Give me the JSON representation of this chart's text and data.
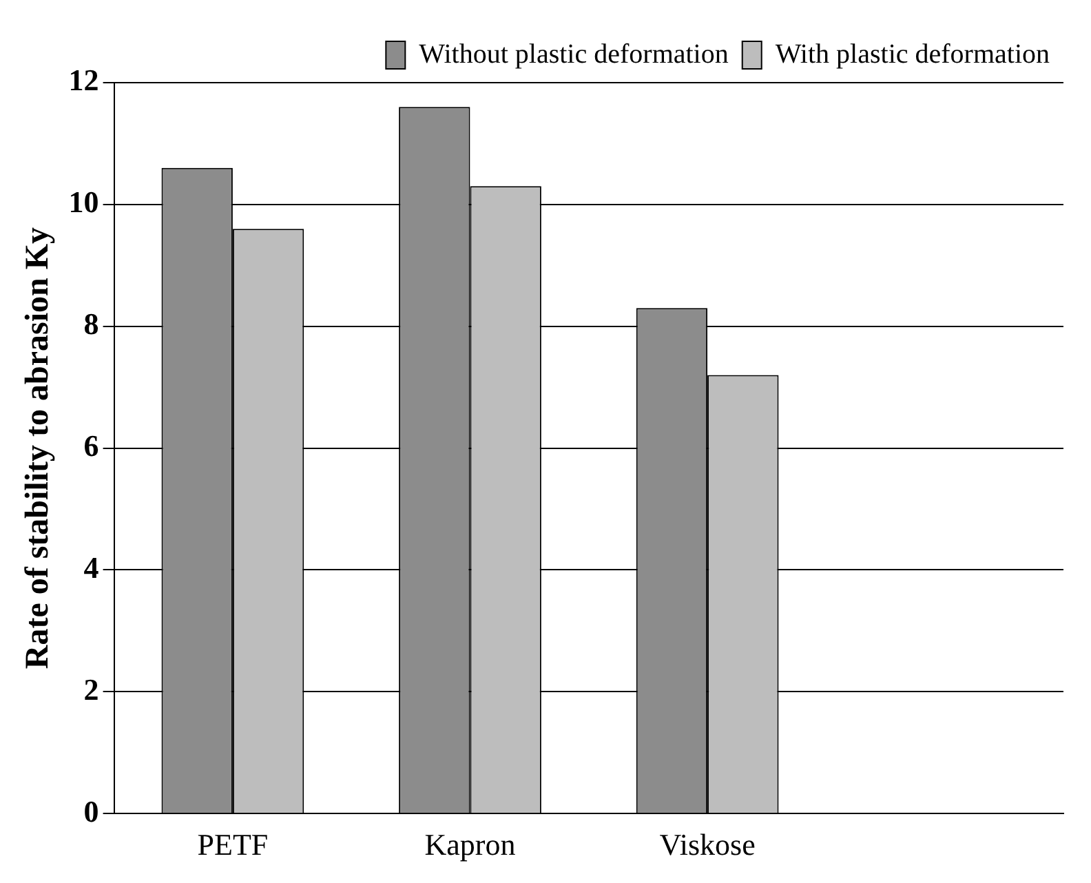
{
  "chart_data": {
    "type": "bar",
    "ylabel": "Rate of stability to abrasion Ky",
    "categories": [
      "PETF",
      "Kapron",
      "Viskose",
      null
    ],
    "series": [
      {
        "name": "Without plastic deformation",
        "color": "#8c8c8c",
        "values": [
          10.6,
          11.6,
          8.3,
          null
        ]
      },
      {
        "name": "With plastic deformation",
        "color": "#bdbdbd",
        "values": [
          9.6,
          10.3,
          7.2,
          null
        ]
      }
    ],
    "ylim": [
      0,
      12
    ],
    "yticks": [
      0,
      2,
      4,
      6,
      8,
      10,
      12
    ],
    "grid": "y",
    "legend": "top right"
  }
}
